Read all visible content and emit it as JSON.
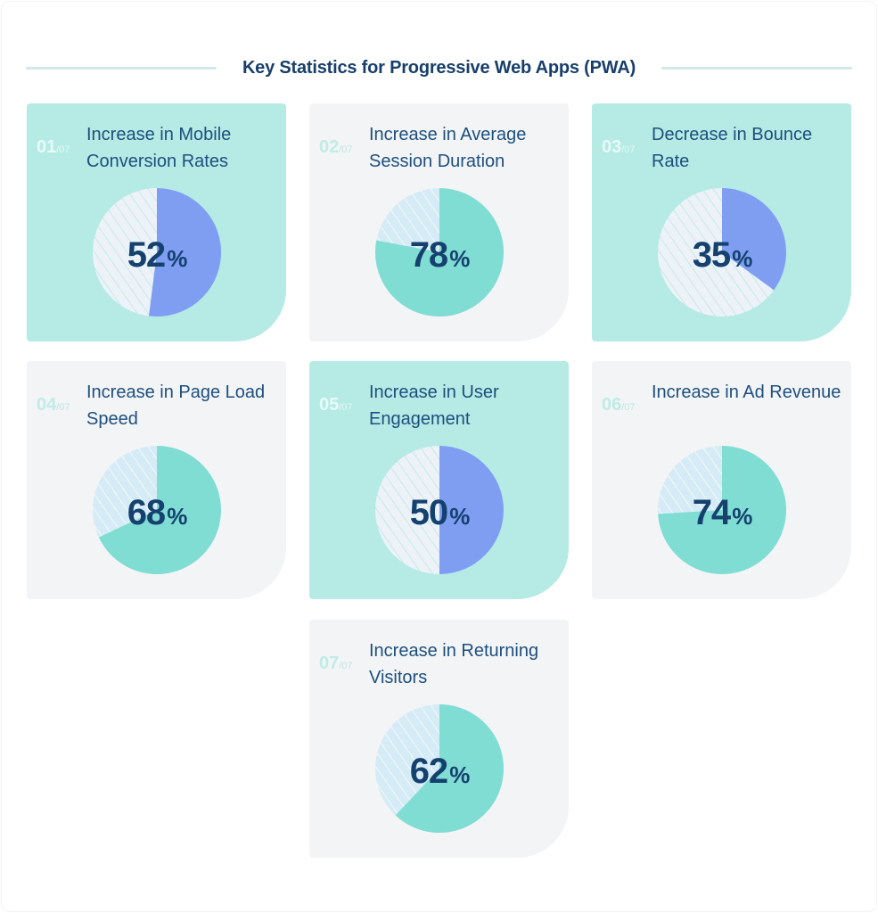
{
  "title": "Key Statistics for Progressive Web Apps (PWA)",
  "total_label": "/07",
  "colors": {
    "teal_card": "#b5ebe4",
    "gray_card": "#f3f4f6",
    "blue_slice": "#7f9ef2",
    "teal_slice": "#80ddd3",
    "hatch_bg_light": "#edf2f8",
    "hatch_bg_blue": "#d5ebf5",
    "text_dark": "#15416f"
  },
  "cards": [
    {
      "index": "01",
      "label": "Increase in Mobile Conversion Rates",
      "value": "52",
      "unit": "%",
      "style": "teal"
    },
    {
      "index": "02",
      "label": "Increase in Average Session Duration",
      "value": "78",
      "unit": "%",
      "style": "gray"
    },
    {
      "index": "03",
      "label": "Decrease in Bounce Rate",
      "value": "35",
      "unit": "%",
      "style": "teal"
    },
    {
      "index": "04",
      "label": "Increase in Page Load Speed",
      "value": "68",
      "unit": "%",
      "style": "gray"
    },
    {
      "index": "05",
      "label": "Increase in User Engagement",
      "value": "50",
      "unit": "%",
      "style": "teal"
    },
    {
      "index": "06",
      "label": "Increase in Ad Revenue",
      "value": "74",
      "unit": "%",
      "style": "gray"
    },
    {
      "index": "07",
      "label": "Increase in Returning Visitors",
      "value": "62",
      "unit": "%",
      "style": "gray"
    }
  ],
  "chart_data": {
    "type": "pie",
    "title": "Key Statistics for Progressive Web Apps (PWA)",
    "categories": [
      "Increase in Mobile Conversion Rates",
      "Increase in Average Session Duration",
      "Decrease in Bounce Rate",
      "Increase in Page Load Speed",
      "Increase in User Engagement",
      "Increase in Ad Revenue",
      "Increase in Returning Visitors"
    ],
    "values": [
      52,
      78,
      35,
      68,
      50,
      74,
      62
    ],
    "unit": "%",
    "note": "Each statistic shown as its own pie: filled slice = value, hatched remainder = 100 - value"
  }
}
